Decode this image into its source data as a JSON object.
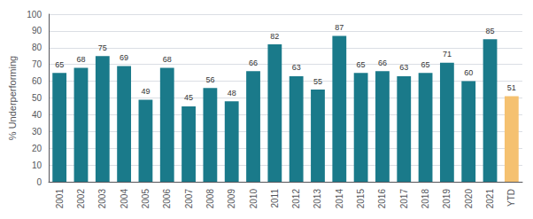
{
  "chart_data": {
    "type": "bar",
    "categories": [
      "2001",
      "2002",
      "2003",
      "2004",
      "2005",
      "2006",
      "2007",
      "2008",
      "2009",
      "2010",
      "2011",
      "2012",
      "2013",
      "2014",
      "2015",
      "2016",
      "2017",
      "2018",
      "2019",
      "2020",
      "2021",
      "YTD"
    ],
    "values": [
      65,
      68,
      75,
      69,
      49,
      68,
      45,
      56,
      48,
      66,
      82,
      63,
      55,
      87,
      65,
      66,
      63,
      65,
      71,
      60,
      85,
      51
    ],
    "colors": [
      "#1a7a8a",
      "#1a7a8a",
      "#1a7a8a",
      "#1a7a8a",
      "#1a7a8a",
      "#1a7a8a",
      "#1a7a8a",
      "#1a7a8a",
      "#1a7a8a",
      "#1a7a8a",
      "#1a7a8a",
      "#1a7a8a",
      "#1a7a8a",
      "#1a7a8a",
      "#1a7a8a",
      "#1a7a8a",
      "#1a7a8a",
      "#1a7a8a",
      "#1a7a8a",
      "#1a7a8a",
      "#1a7a8a",
      "#f5c170"
    ],
    "ylabel": "% Underperforming",
    "ylim": [
      0,
      100
    ],
    "yticks": [
      0,
      10,
      20,
      30,
      40,
      50,
      60,
      70,
      80,
      90,
      100
    ],
    "grid": true,
    "data_labels": true
  }
}
